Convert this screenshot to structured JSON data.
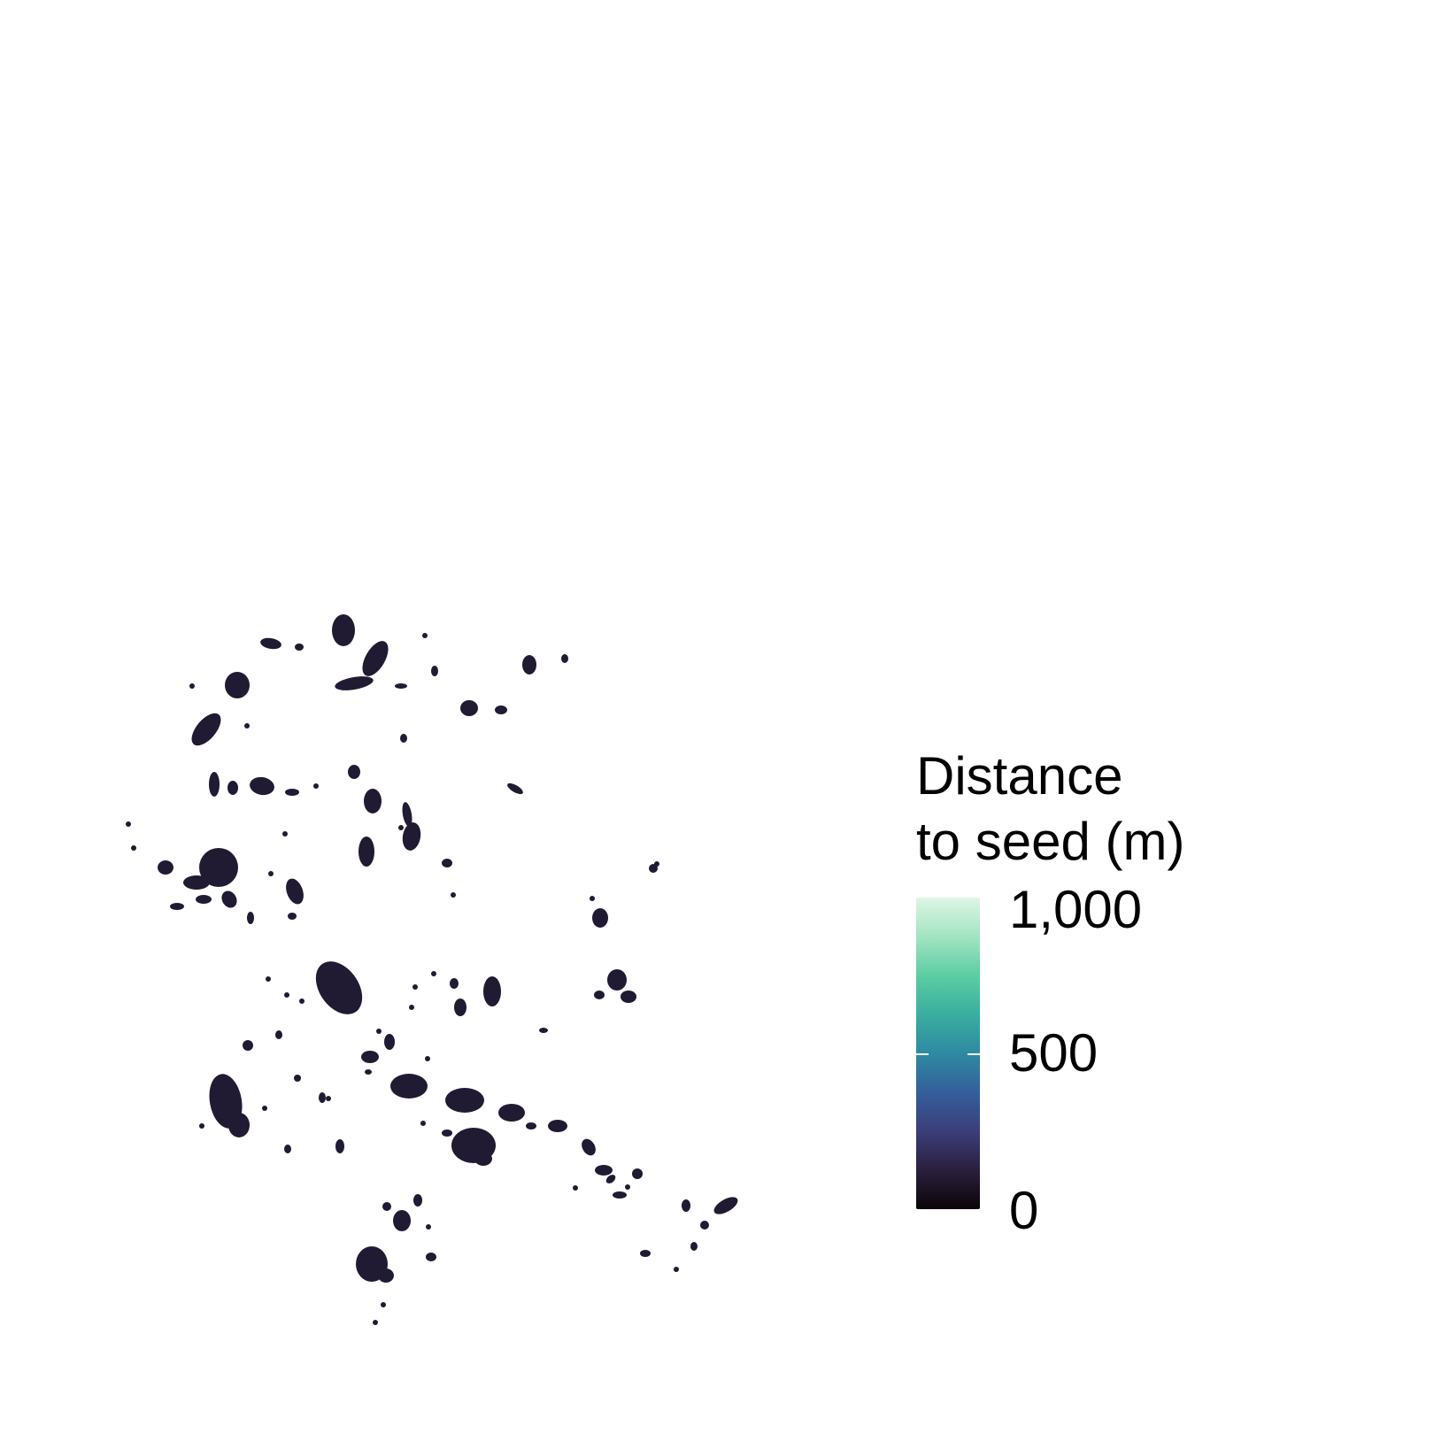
{
  "legend": {
    "title": "Distance\nto seed (m)",
    "ticks": [
      {
        "value": 1000,
        "label": "1,000"
      },
      {
        "value": 500,
        "label": "500"
      },
      {
        "value": 0,
        "label": "0"
      }
    ],
    "range": [
      0,
      1000
    ],
    "colormap": [
      "#0b0508",
      "#2a1f3d",
      "#3b3e7a",
      "#345f9c",
      "#2e8aa2",
      "#3aaea0",
      "#5ccda3",
      "#a3e4c2",
      "#def5e5"
    ]
  },
  "map": {
    "description_type": "raster of seed-source patches",
    "patch_color": "#211a33",
    "background": "#ffffff"
  }
}
